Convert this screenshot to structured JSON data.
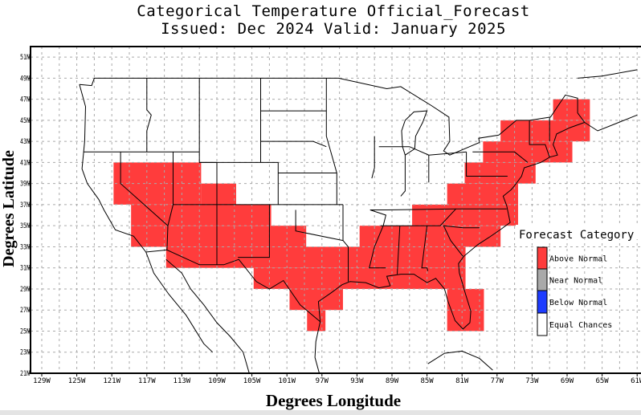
{
  "title": {
    "line1": "Categorical Temperature Official_Forecast",
    "line2": "Issued: Dec 2024 Valid: January 2025"
  },
  "axes": {
    "xlabel": "Degrees Longitude",
    "ylabel": "Degrees Latitude",
    "x_ticks": [
      "129W",
      "125W",
      "121W",
      "117W",
      "113W",
      "109W",
      "105W",
      "101W",
      "97W",
      "93W",
      "89W",
      "85W",
      "81W",
      "77W",
      "73W",
      "69W",
      "65W",
      "61W"
    ],
    "y_ticks": [
      "51N",
      "49N",
      "47N",
      "45N",
      "43N",
      "41N",
      "39N",
      "37N",
      "35N",
      "33N",
      "31N",
      "29N",
      "27N",
      "25N",
      "23N",
      "21N"
    ],
    "grid": "dashed, every 2 degrees"
  },
  "legend": {
    "title": "Forecast Category",
    "items": [
      {
        "label": "Above Normal",
        "color": "#ff3c3c"
      },
      {
        "label": "Near Normal",
        "color": "#a9a9a9"
      },
      {
        "label": "Below Normal",
        "color": "#1e3cff"
      },
      {
        "label": "Equal Chances",
        "color": "#ffffff"
      }
    ]
  },
  "forecast_regions": {
    "category": "Above Normal",
    "units": "lon_west_deg, lat_north_deg: [west, east, south, north]",
    "boxes": [
      [
        120.8,
        110.8,
        37,
        41
      ],
      [
        110.8,
        106.8,
        37,
        39
      ],
      [
        118.8,
        102.8,
        35,
        37
      ],
      [
        118.8,
        98.8,
        33,
        35
      ],
      [
        92.7,
        76.6,
        33,
        35
      ],
      [
        114.8,
        80.6,
        31,
        33
      ],
      [
        104.8,
        80.6,
        29,
        31
      ],
      [
        100.7,
        94.6,
        27,
        29
      ],
      [
        98.7,
        96.6,
        25,
        27
      ],
      [
        82.7,
        78.5,
        25,
        29
      ],
      [
        86.7,
        74.6,
        35,
        37
      ],
      [
        82.7,
        74.6,
        37,
        39
      ],
      [
        80.7,
        72.6,
        39,
        41
      ],
      [
        78.6,
        68.4,
        41,
        43
      ],
      [
        76.6,
        66.4,
        43,
        45
      ],
      [
        70.6,
        66.4,
        45,
        47
      ]
    ]
  }
}
